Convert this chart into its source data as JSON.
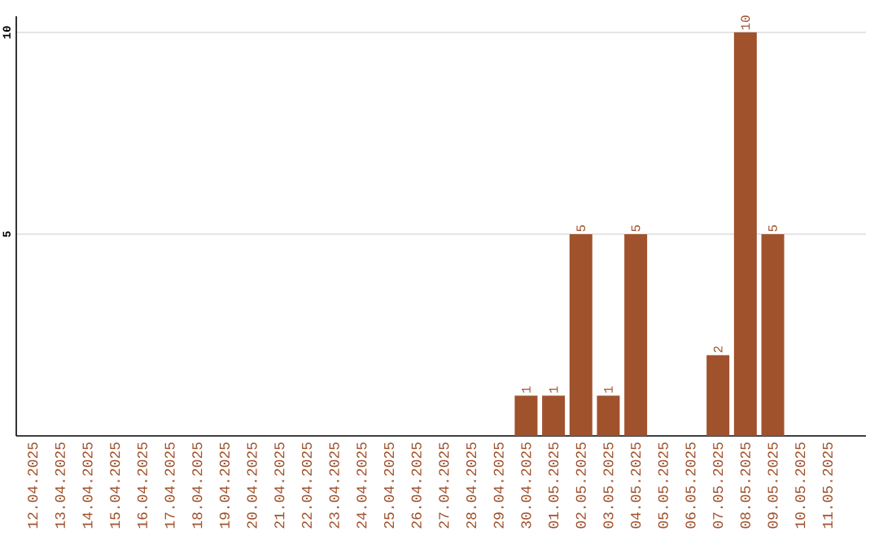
{
  "chart_data": {
    "type": "bar",
    "categories": [
      "12.04.2025",
      "13.04.2025",
      "14.04.2025",
      "15.04.2025",
      "16.04.2025",
      "17.04.2025",
      "18.04.2025",
      "19.04.2025",
      "20.04.2025",
      "21.04.2025",
      "22.04.2025",
      "23.04.2025",
      "24.04.2025",
      "25.04.2025",
      "26.04.2025",
      "27.04.2025",
      "28.04.2025",
      "29.04.2025",
      "30.04.2025",
      "01.05.2025",
      "02.05.2025",
      "03.05.2025",
      "04.05.2025",
      "05.05.2025",
      "06.05.2025",
      "07.05.2025",
      "08.05.2025",
      "09.05.2025",
      "10.05.2025",
      "11.05.2025"
    ],
    "values": [
      0,
      0,
      0,
      0,
      0,
      0,
      0,
      0,
      0,
      0,
      0,
      0,
      0,
      0,
      0,
      0,
      0,
      0,
      1,
      1,
      5,
      1,
      5,
      0,
      0,
      2,
      10,
      5,
      0,
      0
    ],
    "value_labels": [
      null,
      null,
      null,
      null,
      null,
      null,
      null,
      null,
      null,
      null,
      null,
      null,
      null,
      null,
      null,
      null,
      null,
      null,
      "1",
      "1",
      "5",
      "1",
      "5",
      null,
      null,
      "2",
      "10",
      "5",
      null,
      null
    ],
    "color": "#a0522d",
    "ylim": [
      0,
      10.4
    ],
    "yticks": [
      5,
      10
    ],
    "grid": "y"
  }
}
